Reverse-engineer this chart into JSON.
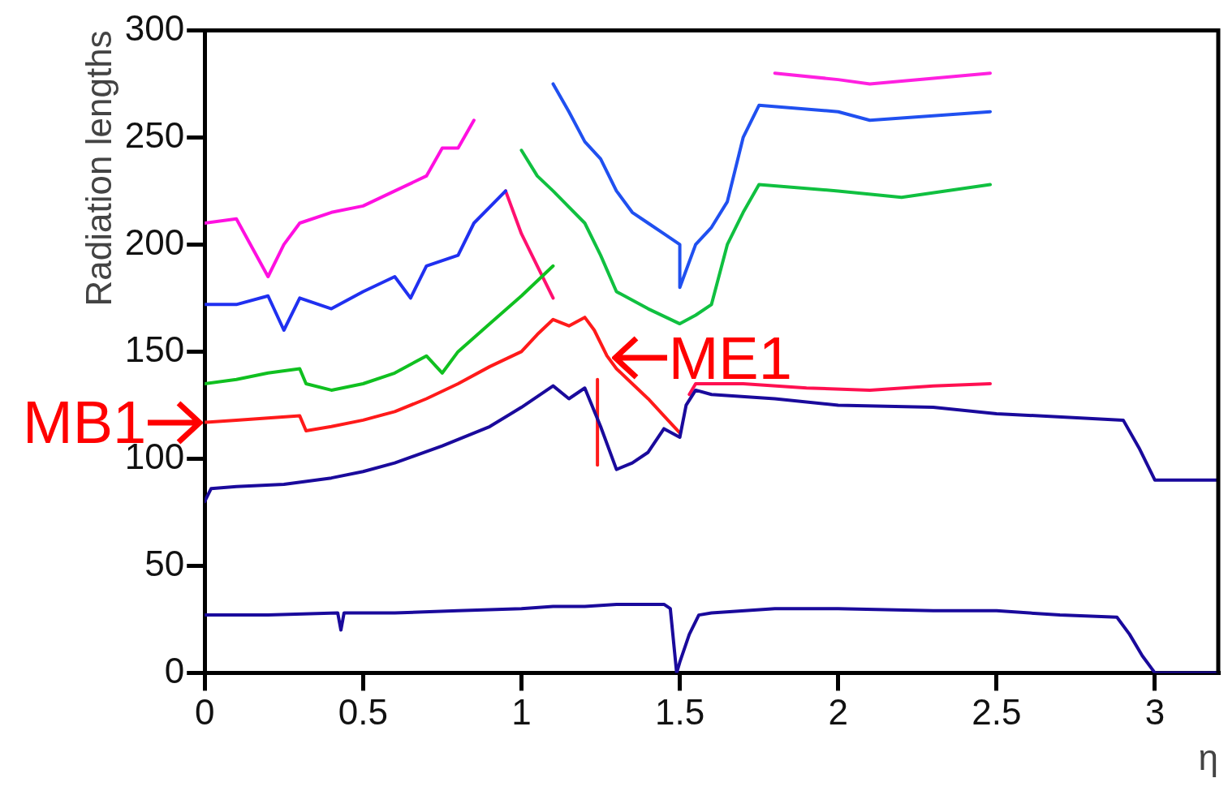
{
  "chart_data": {
    "type": "line",
    "xlabel": "η",
    "ylabel": "Radiation lengths",
    "xlim": [
      0,
      3.2
    ],
    "ylim": [
      0,
      300
    ],
    "xticks": [
      0,
      0.5,
      1,
      1.5,
      2,
      2.5,
      3
    ],
    "yticks": [
      0,
      50,
      100,
      150,
      200,
      250,
      300
    ],
    "grid": false,
    "legend": false,
    "marker": "none",
    "line_style": "solid",
    "series": [
      {
        "color": "#1a0a9c",
        "x": [
          0,
          0.2,
          0.42,
          0.43,
          0.44,
          0.6,
          0.8,
          1.0,
          1.1,
          1.2,
          1.3,
          1.45,
          1.47,
          1.49,
          1.5,
          1.53,
          1.56,
          1.6,
          1.8,
          2.0,
          2.3,
          2.5,
          2.7,
          2.88,
          2.92,
          2.96,
          2.99,
          3.0,
          3.2
        ],
        "values": [
          27,
          27,
          28,
          20,
          28,
          28,
          29,
          30,
          31,
          31,
          32,
          32,
          30,
          0,
          5,
          18,
          27,
          28,
          30,
          30,
          29,
          29,
          27,
          26,
          18,
          8,
          2,
          0,
          0
        ]
      },
      {
        "color": "#1a0a9c",
        "x": [
          0,
          0.02,
          0.1,
          0.25,
          0.4,
          0.5,
          0.6,
          0.75,
          0.9,
          1.0,
          1.1,
          1.15,
          1.2,
          1.25,
          1.3,
          1.35,
          1.4,
          1.45,
          1.5,
          1.52,
          1.55,
          1.6,
          1.8,
          2.0,
          2.3,
          2.5,
          2.9,
          2.95,
          2.99,
          3.0,
          3.2
        ],
        "values": [
          80,
          86,
          87,
          88,
          91,
          94,
          98,
          106,
          115,
          124,
          134,
          128,
          133,
          115,
          95,
          98,
          103,
          114,
          110,
          125,
          132,
          130,
          128,
          125,
          124,
          121,
          118,
          105,
          93,
          90,
          90
        ]
      },
      {
        "color": "#ff1a1a",
        "x": [
          0,
          0.1,
          0.2,
          0.3,
          0.32,
          0.4,
          0.5,
          0.6,
          0.7,
          0.8,
          0.9,
          1.0,
          1.05,
          1.1,
          1.15,
          1.2,
          1.23,
          1.27,
          1.3,
          1.35,
          1.4,
          1.45,
          1.5
        ],
        "values": [
          117,
          118,
          119,
          120,
          113,
          115,
          118,
          122,
          128,
          135,
          143,
          150,
          158,
          165,
          162,
          166,
          160,
          148,
          142,
          135,
          128,
          120,
          112
        ]
      },
      {
        "color": "#ff1a1a",
        "x": [
          1.24,
          1.24
        ],
        "values": [
          97,
          137
        ]
      },
      {
        "color": "#ff1050",
        "x": [
          1.53,
          1.55,
          1.7,
          1.9,
          2.1,
          2.3,
          2.48
        ],
        "values": [
          130,
          135,
          135,
          133,
          132,
          134,
          135
        ]
      },
      {
        "color": "#10c020",
        "x": [
          0,
          0.1,
          0.2,
          0.3,
          0.32,
          0.4,
          0.5,
          0.6,
          0.7,
          0.75,
          0.8,
          0.9,
          1.0,
          1.1
        ],
        "values": [
          135,
          137,
          140,
          142,
          135,
          132,
          135,
          140,
          148,
          140,
          150,
          163,
          176,
          190
        ]
      },
      {
        "color": "#10c040",
        "x": [
          1.0,
          1.05,
          1.1,
          1.2,
          1.25,
          1.3,
          1.4,
          1.5,
          1.55,
          1.6,
          1.65,
          1.7,
          1.75,
          2.0,
          2.2,
          2.48
        ],
        "values": [
          244,
          232,
          225,
          210,
          195,
          178,
          170,
          163,
          167,
          172,
          200,
          215,
          228,
          225,
          222,
          228
        ]
      },
      {
        "color": "#2030f0",
        "x": [
          0,
          0.1,
          0.2,
          0.25,
          0.3,
          0.4,
          0.5,
          0.6,
          0.65,
          0.7,
          0.8,
          0.85,
          0.95
        ],
        "values": [
          172,
          172,
          176,
          160,
          175,
          170,
          178,
          185,
          175,
          190,
          195,
          210,
          225
        ]
      },
      {
        "color": "#2050f0",
        "x": [
          1.1,
          1.15,
          1.2,
          1.25,
          1.3,
          1.35,
          1.4,
          1.45,
          1.5,
          1.5,
          1.55,
          1.6,
          1.65,
          1.7,
          1.75,
          2.0,
          2.1,
          2.48
        ],
        "values": [
          275,
          262,
          248,
          240,
          225,
          215,
          210,
          205,
          200,
          180,
          200,
          208,
          220,
          250,
          265,
          262,
          258,
          262
        ]
      },
      {
        "color": "#ff10e0",
        "x": [
          0,
          0.1,
          0.2,
          0.25,
          0.3,
          0.4,
          0.5,
          0.6,
          0.7,
          0.75,
          0.8,
          0.85
        ],
        "values": [
          210,
          212,
          185,
          200,
          210,
          215,
          218,
          225,
          232,
          245,
          245,
          258
        ]
      },
      {
        "color": "#ff1070",
        "x": [
          0.95,
          1.0,
          1.05,
          1.1
        ],
        "values": [
          225,
          205,
          190,
          175
        ]
      },
      {
        "color": "#ff20e0",
        "x": [
          1.8,
          2.0,
          2.1,
          2.48
        ],
        "values": [
          280,
          277,
          275,
          280
        ]
      }
    ],
    "annotations": [
      {
        "text": "MB1",
        "x": 0,
        "y": 117
      },
      {
        "text": "ME1",
        "x": 1.28,
        "y": 147
      }
    ]
  }
}
